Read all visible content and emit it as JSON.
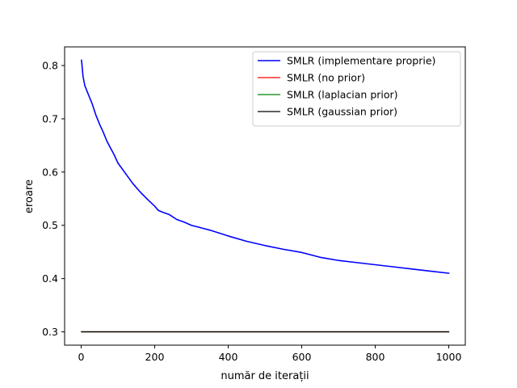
{
  "chart_data": {
    "type": "line",
    "title": "",
    "xlabel": "număr de iterații",
    "ylabel": "eroare",
    "xlim": [
      -45,
      1045
    ],
    "ylim": [
      0.275,
      0.835
    ],
    "xticks": [
      0,
      200,
      400,
      600,
      800,
      1000
    ],
    "yticks": [
      0.3,
      0.4,
      0.5,
      0.6,
      0.7,
      0.8
    ],
    "xtick_labels": [
      "0",
      "200",
      "400",
      "600",
      "800",
      "1000"
    ],
    "ytick_labels": [
      "0.3",
      "0.4",
      "0.5",
      "0.6",
      "0.7",
      "0.8"
    ],
    "grid": false,
    "legend_position": "top-right",
    "series": [
      {
        "name": "SMLR (implementare proprie)",
        "color": "#0000ff",
        "x": [
          1,
          5,
          10,
          20,
          30,
          40,
          50,
          60,
          70,
          80,
          90,
          100,
          120,
          140,
          160,
          180,
          200,
          210,
          220,
          240,
          260,
          280,
          300,
          350,
          400,
          450,
          500,
          550,
          600,
          650,
          700,
          750,
          800,
          850,
          900,
          950,
          1000
        ],
        "y": [
          0.81,
          0.78,
          0.762,
          0.745,
          0.728,
          0.707,
          0.69,
          0.675,
          0.658,
          0.645,
          0.632,
          0.617,
          0.598,
          0.579,
          0.563,
          0.549,
          0.536,
          0.528,
          0.525,
          0.52,
          0.511,
          0.506,
          0.5,
          0.491,
          0.48,
          0.47,
          0.462,
          0.455,
          0.449,
          0.44,
          0.434,
          0.43,
          0.426,
          0.422,
          0.418,
          0.414,
          0.41
        ]
      },
      {
        "name": "SMLR (no prior)",
        "color": "#ff0000",
        "x": [
          1,
          1000
        ],
        "y": [
          0.3,
          0.3
        ]
      },
      {
        "name": "SMLR (laplacian prior)",
        "color": "#008000",
        "x": [
          1,
          1000
        ],
        "y": [
          0.3,
          0.3
        ]
      },
      {
        "name": "SMLR (gaussian prior)",
        "color": "#000000",
        "x": [
          1,
          1000
        ],
        "y": [
          0.3,
          0.3
        ]
      }
    ]
  }
}
